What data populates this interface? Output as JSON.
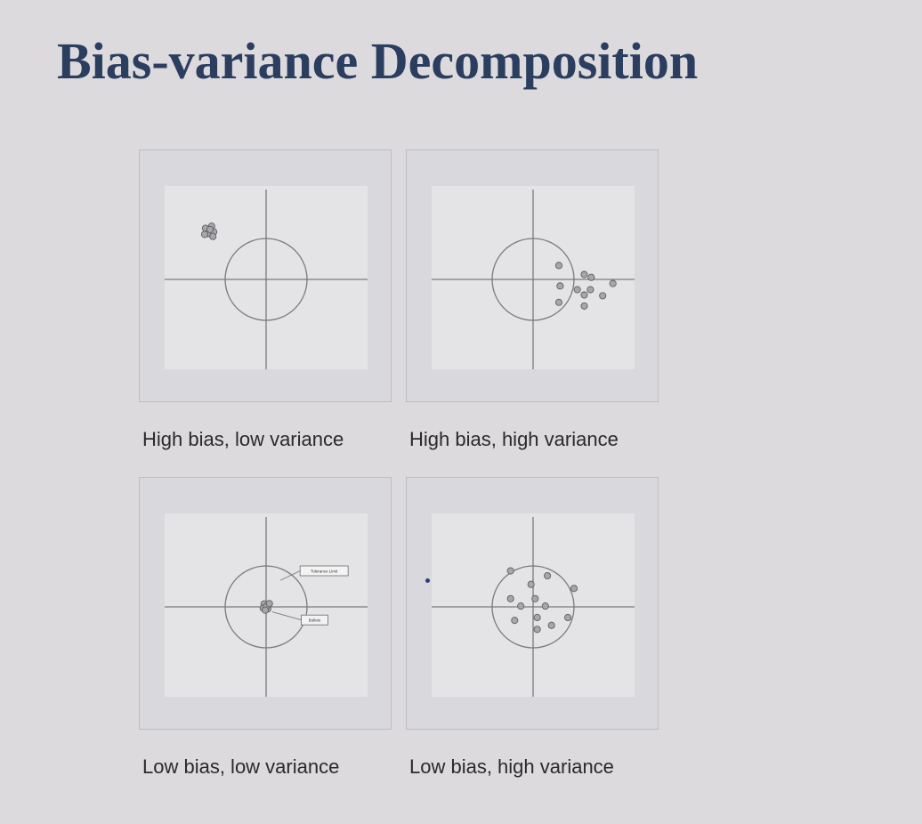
{
  "slide": {
    "title": "Bias-variance Decomposition"
  },
  "panels": [
    {
      "id": "high-bias-low-variance",
      "caption": "High bias, low variance",
      "target_center": [
        0,
        0
      ],
      "target_radius": 1,
      "shots": [
        [
          -1.48,
          1.25
        ],
        [
          -1.33,
          1.3
        ],
        [
          -1.43,
          1.12
        ],
        [
          -1.28,
          1.16
        ],
        [
          -1.37,
          1.22
        ],
        [
          -1.5,
          1.1
        ],
        [
          -1.3,
          1.05
        ]
      ]
    },
    {
      "id": "high-bias-high-variance",
      "caption": "High bias, high variance",
      "target_center": [
        0,
        0
      ],
      "target_radius": 1,
      "shots": [
        [
          0.63,
          0.34
        ],
        [
          1.25,
          0.12
        ],
        [
          1.42,
          0.05
        ],
        [
          1.95,
          -0.1
        ],
        [
          0.66,
          -0.16
        ],
        [
          1.08,
          -0.25
        ],
        [
          1.4,
          -0.25
        ],
        [
          0.63,
          -0.56
        ],
        [
          1.25,
          -0.38
        ],
        [
          1.7,
          -0.4
        ],
        [
          1.25,
          -0.65
        ]
      ]
    },
    {
      "id": "low-bias-low-variance",
      "caption": "Low bias, low variance",
      "target_center": [
        0,
        0
      ],
      "target_radius": 1,
      "shots": [
        [
          -0.05,
          0.07
        ],
        [
          0.05,
          0.04
        ],
        [
          -0.07,
          -0.03
        ],
        [
          0.04,
          -0.05
        ],
        [
          0.0,
          0.0
        ],
        [
          0.08,
          0.08
        ],
        [
          -0.02,
          -0.08
        ]
      ],
      "callouts": [
        {
          "label": "Tolerance Limit",
          "target": [
            0.35,
            0.65
          ],
          "box": [
            0.83,
            1.0
          ]
        },
        {
          "label": "Bullets",
          "target": [
            0.15,
            -0.12
          ],
          "box": [
            0.86,
            -0.2
          ]
        }
      ]
    },
    {
      "id": "low-bias-high-variance",
      "caption": "Low bias, high variance",
      "target_center": [
        0,
        0
      ],
      "target_radius": 1,
      "shots": [
        [
          -0.55,
          0.88
        ],
        [
          0.35,
          0.76
        ],
        [
          -0.05,
          0.55
        ],
        [
          1.0,
          0.45
        ],
        [
          -0.55,
          0.2
        ],
        [
          0.05,
          0.2
        ],
        [
          -0.3,
          0.02
        ],
        [
          0.3,
          0.02
        ],
        [
          0.1,
          -0.26
        ],
        [
          0.85,
          -0.26
        ],
        [
          -0.45,
          -0.33
        ],
        [
          0.45,
          -0.45
        ],
        [
          0.1,
          -0.55
        ]
      ]
    }
  ],
  "colors": {
    "title": "#2b3e5f",
    "panel_background": "#d9d8dc",
    "panel_border": "#bdbcc0",
    "plot_background": "#e4e3e6",
    "axis_line": "#7a7a7c",
    "shot_fill": "#a7a6aa",
    "shot_stroke": "#5f5f62"
  }
}
